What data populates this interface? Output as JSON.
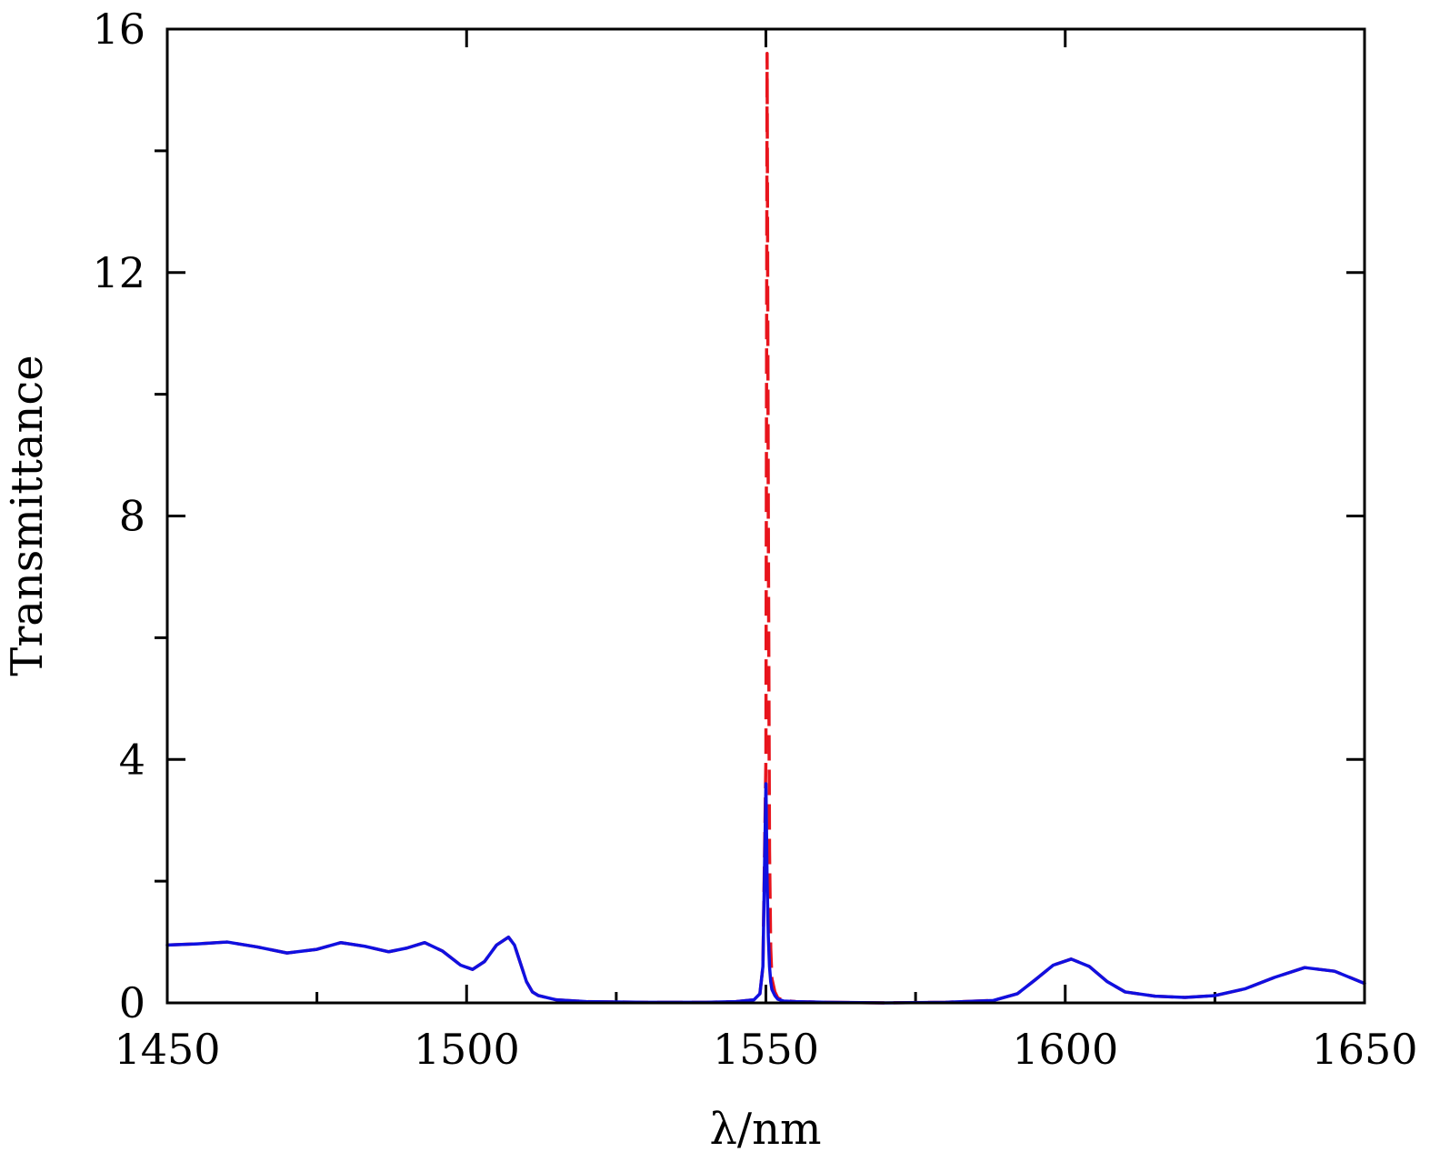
{
  "chart_data": {
    "type": "line",
    "title": "",
    "xlabel": "λ/nm",
    "ylabel": "Transmittance",
    "xlim": [
      1450,
      1650
    ],
    "ylim": [
      0,
      16
    ],
    "x_ticks": [
      1450,
      1500,
      1550,
      1600,
      1650
    ],
    "x_tick_labels": [
      "1450",
      "1500",
      "1550",
      "1600",
      "1650"
    ],
    "x_minor_ticks": [
      1475,
      1525,
      1575,
      1625
    ],
    "y_ticks": [
      0,
      4,
      8,
      12,
      16
    ],
    "y_tick_labels": [
      "0",
      "4",
      "8",
      "12",
      "16"
    ],
    "y_minor_ticks": [
      2,
      6,
      10,
      14
    ],
    "grid": false,
    "series": [
      {
        "color": "#e8141c",
        "style": "dashed",
        "x": [
          1450,
          1455,
          1460,
          1465,
          1470,
          1475,
          1479,
          1483,
          1487,
          1490,
          1493,
          1496,
          1499,
          1501,
          1503,
          1505,
          1507,
          1508,
          1509,
          1510,
          1511,
          1512,
          1515,
          1520,
          1530,
          1540,
          1545,
          1548,
          1549,
          1549.5,
          1550,
          1550.2,
          1550.4,
          1550.6,
          1550.8,
          1551,
          1551.5,
          1552,
          1553,
          1555,
          1560,
          1570,
          1580,
          1588,
          1592,
          1595,
          1598,
          1601,
          1604,
          1607,
          1610,
          1615,
          1620,
          1625,
          1630,
          1635,
          1640,
          1645,
          1650
        ],
        "y": [
          0.95,
          0.97,
          1.0,
          0.92,
          0.82,
          0.88,
          0.99,
          0.93,
          0.84,
          0.9,
          0.99,
          0.85,
          0.62,
          0.55,
          0.68,
          0.95,
          1.08,
          0.95,
          0.65,
          0.35,
          0.18,
          0.12,
          0.05,
          0.02,
          0.01,
          0.01,
          0.02,
          0.05,
          0.15,
          0.6,
          4.0,
          15.6,
          8.0,
          2.5,
          0.9,
          0.4,
          0.18,
          0.08,
          0.04,
          0.02,
          0.01,
          0.0,
          0.01,
          0.04,
          0.15,
          0.38,
          0.62,
          0.72,
          0.6,
          0.35,
          0.18,
          0.11,
          0.09,
          0.12,
          0.23,
          0.42,
          0.58,
          0.52,
          0.32
        ]
      },
      {
        "color": "#1010e0",
        "style": "solid",
        "x": [
          1450,
          1455,
          1460,
          1465,
          1470,
          1475,
          1479,
          1483,
          1487,
          1490,
          1493,
          1496,
          1499,
          1501,
          1503,
          1505,
          1507,
          1508,
          1509,
          1510,
          1511,
          1512,
          1515,
          1520,
          1530,
          1540,
          1545,
          1548,
          1549,
          1549.5,
          1550,
          1550.2,
          1550.4,
          1550.6,
          1550.8,
          1551,
          1551.5,
          1552,
          1553,
          1555,
          1560,
          1570,
          1580,
          1588,
          1592,
          1595,
          1598,
          1601,
          1604,
          1607,
          1610,
          1615,
          1620,
          1625,
          1630,
          1635,
          1640,
          1645,
          1650
        ],
        "y": [
          0.95,
          0.97,
          1.0,
          0.92,
          0.82,
          0.88,
          0.99,
          0.93,
          0.84,
          0.9,
          0.99,
          0.85,
          0.62,
          0.55,
          0.68,
          0.95,
          1.08,
          0.95,
          0.65,
          0.35,
          0.18,
          0.12,
          0.05,
          0.02,
          0.01,
          0.01,
          0.02,
          0.05,
          0.15,
          0.6,
          3.6,
          2.0,
          1.1,
          0.6,
          0.35,
          0.22,
          0.12,
          0.06,
          0.03,
          0.02,
          0.01,
          0.0,
          0.01,
          0.04,
          0.15,
          0.38,
          0.62,
          0.72,
          0.6,
          0.35,
          0.18,
          0.11,
          0.09,
          0.12,
          0.23,
          0.42,
          0.58,
          0.52,
          0.32
        ]
      }
    ]
  }
}
